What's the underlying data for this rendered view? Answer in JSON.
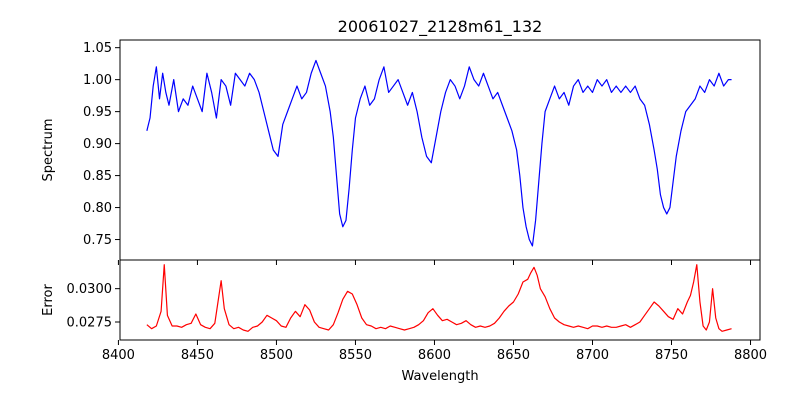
{
  "chart_data": [
    {
      "type": "line",
      "title": "20061027_2128m61_132",
      "xlabel": "",
      "ylabel": "Spectrum",
      "xlim": [
        8401,
        8806
      ],
      "ylim": [
        0.718,
        1.062
      ],
      "xticks": [
        8400,
        8450,
        8500,
        8550,
        8600,
        8650,
        8700,
        8750,
        8800
      ],
      "yticks": [
        0.75,
        0.8,
        0.85,
        0.9,
        0.95,
        1.0,
        1.05
      ],
      "ytick_labels": [
        "0.75",
        "0.80",
        "0.85",
        "0.90",
        "0.95",
        "1.00",
        "1.05"
      ],
      "grid": false,
      "color": "#0000ff",
      "x_range": [
        8418,
        8788
      ],
      "points": [
        [
          8418,
          0.92
        ],
        [
          8420,
          0.94
        ],
        [
          8422,
          0.99
        ],
        [
          8424,
          1.02
        ],
        [
          8426,
          0.97
        ],
        [
          8428,
          1.01
        ],
        [
          8430,
          0.98
        ],
        [
          8432,
          0.96
        ],
        [
          8435,
          1.0
        ],
        [
          8438,
          0.95
        ],
        [
          8441,
          0.97
        ],
        [
          8444,
          0.96
        ],
        [
          8447,
          0.99
        ],
        [
          8450,
          0.97
        ],
        [
          8453,
          0.95
        ],
        [
          8456,
          1.01
        ],
        [
          8459,
          0.98
        ],
        [
          8462,
          0.94
        ],
        [
          8465,
          1.0
        ],
        [
          8468,
          0.99
        ],
        [
          8471,
          0.96
        ],
        [
          8474,
          1.01
        ],
        [
          8477,
          1.0
        ],
        [
          8480,
          0.99
        ],
        [
          8483,
          1.01
        ],
        [
          8486,
          1.0
        ],
        [
          8489,
          0.98
        ],
        [
          8492,
          0.95
        ],
        [
          8495,
          0.92
        ],
        [
          8498,
          0.89
        ],
        [
          8501,
          0.88
        ],
        [
          8504,
          0.93
        ],
        [
          8507,
          0.95
        ],
        [
          8510,
          0.97
        ],
        [
          8513,
          0.99
        ],
        [
          8516,
          0.97
        ],
        [
          8519,
          0.98
        ],
        [
          8522,
          1.01
        ],
        [
          8525,
          1.03
        ],
        [
          8528,
          1.01
        ],
        [
          8531,
          0.99
        ],
        [
          8534,
          0.95
        ],
        [
          8536,
          0.91
        ],
        [
          8538,
          0.85
        ],
        [
          8540,
          0.79
        ],
        [
          8542,
          0.77
        ],
        [
          8544,
          0.78
        ],
        [
          8546,
          0.83
        ],
        [
          8548,
          0.89
        ],
        [
          8550,
          0.94
        ],
        [
          8553,
          0.97
        ],
        [
          8556,
          0.99
        ],
        [
          8559,
          0.96
        ],
        [
          8562,
          0.97
        ],
        [
          8565,
          1.0
        ],
        [
          8568,
          1.02
        ],
        [
          8571,
          0.98
        ],
        [
          8574,
          0.99
        ],
        [
          8577,
          1.0
        ],
        [
          8580,
          0.98
        ],
        [
          8583,
          0.96
        ],
        [
          8586,
          0.98
        ],
        [
          8589,
          0.95
        ],
        [
          8592,
          0.91
        ],
        [
          8595,
          0.88
        ],
        [
          8598,
          0.87
        ],
        [
          8601,
          0.91
        ],
        [
          8604,
          0.95
        ],
        [
          8607,
          0.98
        ],
        [
          8610,
          1.0
        ],
        [
          8613,
          0.99
        ],
        [
          8616,
          0.97
        ],
        [
          8619,
          0.99
        ],
        [
          8622,
          1.02
        ],
        [
          8625,
          1.0
        ],
        [
          8628,
          0.99
        ],
        [
          8631,
          1.01
        ],
        [
          8634,
          0.99
        ],
        [
          8637,
          0.97
        ],
        [
          8640,
          0.98
        ],
        [
          8643,
          0.96
        ],
        [
          8646,
          0.94
        ],
        [
          8649,
          0.92
        ],
        [
          8652,
          0.89
        ],
        [
          8654,
          0.85
        ],
        [
          8656,
          0.8
        ],
        [
          8658,
          0.77
        ],
        [
          8660,
          0.75
        ],
        [
          8662,
          0.74
        ],
        [
          8664,
          0.78
        ],
        [
          8666,
          0.84
        ],
        [
          8668,
          0.9
        ],
        [
          8670,
          0.95
        ],
        [
          8673,
          0.97
        ],
        [
          8676,
          0.99
        ],
        [
          8679,
          0.97
        ],
        [
          8682,
          0.98
        ],
        [
          8685,
          0.96
        ],
        [
          8688,
          0.99
        ],
        [
          8691,
          1.0
        ],
        [
          8694,
          0.98
        ],
        [
          8697,
          0.99
        ],
        [
          8700,
          0.98
        ],
        [
          8703,
          1.0
        ],
        [
          8706,
          0.99
        ],
        [
          8709,
          1.0
        ],
        [
          8712,
          0.98
        ],
        [
          8715,
          0.99
        ],
        [
          8718,
          0.98
        ],
        [
          8721,
          0.99
        ],
        [
          8724,
          0.98
        ],
        [
          8727,
          0.99
        ],
        [
          8730,
          0.97
        ],
        [
          8733,
          0.96
        ],
        [
          8736,
          0.93
        ],
        [
          8739,
          0.89
        ],
        [
          8741,
          0.86
        ],
        [
          8743,
          0.82
        ],
        [
          8745,
          0.8
        ],
        [
          8747,
          0.79
        ],
        [
          8749,
          0.8
        ],
        [
          8751,
          0.84
        ],
        [
          8753,
          0.88
        ],
        [
          8756,
          0.92
        ],
        [
          8759,
          0.95
        ],
        [
          8762,
          0.96
        ],
        [
          8765,
          0.97
        ],
        [
          8768,
          0.99
        ],
        [
          8771,
          0.98
        ],
        [
          8774,
          1.0
        ],
        [
          8777,
          0.99
        ],
        [
          8780,
          1.01
        ],
        [
          8783,
          0.99
        ],
        [
          8786,
          1.0
        ],
        [
          8788,
          1.0
        ]
      ]
    },
    {
      "type": "line",
      "title": "",
      "xlabel": "Wavelength",
      "ylabel": "Error",
      "xlim": [
        8401,
        8806
      ],
      "ylim": [
        0.02615,
        0.03215
      ],
      "xticks": [
        8400,
        8450,
        8500,
        8550,
        8600,
        8650,
        8700,
        8750,
        8800
      ],
      "xtick_labels": [
        "8400",
        "8450",
        "8500",
        "8550",
        "8600",
        "8650",
        "8700",
        "8750",
        "8800"
      ],
      "yticks": [
        0.0275,
        0.03
      ],
      "ytick_labels": [
        "0.0275",
        "0.0300"
      ],
      "grid": false,
      "color": "#ff0000",
      "x_range": [
        8418,
        8788
      ],
      "points": [
        [
          8418,
          0.0273
        ],
        [
          8421,
          0.027
        ],
        [
          8424,
          0.0272
        ],
        [
          8427,
          0.0283
        ],
        [
          8429,
          0.0318
        ],
        [
          8431,
          0.028
        ],
        [
          8434,
          0.0272
        ],
        [
          8437,
          0.0272
        ],
        [
          8440,
          0.0271
        ],
        [
          8443,
          0.0273
        ],
        [
          8446,
          0.0274
        ],
        [
          8449,
          0.0281
        ],
        [
          8452,
          0.0273
        ],
        [
          8455,
          0.0271
        ],
        [
          8458,
          0.027
        ],
        [
          8461,
          0.0274
        ],
        [
          8463,
          0.029
        ],
        [
          8465,
          0.0306
        ],
        [
          8467,
          0.0285
        ],
        [
          8470,
          0.0273
        ],
        [
          8473,
          0.027
        ],
        [
          8476,
          0.0271
        ],
        [
          8479,
          0.0269
        ],
        [
          8482,
          0.0268
        ],
        [
          8485,
          0.0271
        ],
        [
          8488,
          0.0272
        ],
        [
          8491,
          0.0275
        ],
        [
          8494,
          0.028
        ],
        [
          8497,
          0.0278
        ],
        [
          8500,
          0.0276
        ],
        [
          8503,
          0.0272
        ],
        [
          8506,
          0.0271
        ],
        [
          8509,
          0.0278
        ],
        [
          8512,
          0.0283
        ],
        [
          8515,
          0.0279
        ],
        [
          8518,
          0.0288
        ],
        [
          8521,
          0.0284
        ],
        [
          8524,
          0.0275
        ],
        [
          8527,
          0.0271
        ],
        [
          8530,
          0.027
        ],
        [
          8533,
          0.0269
        ],
        [
          8536,
          0.0273
        ],
        [
          8539,
          0.0282
        ],
        [
          8542,
          0.0292
        ],
        [
          8545,
          0.0298
        ],
        [
          8548,
          0.0296
        ],
        [
          8551,
          0.0288
        ],
        [
          8554,
          0.0278
        ],
        [
          8557,
          0.0273
        ],
        [
          8560,
          0.0272
        ],
        [
          8563,
          0.027
        ],
        [
          8566,
          0.0271
        ],
        [
          8569,
          0.027
        ],
        [
          8572,
          0.0272
        ],
        [
          8575,
          0.0271
        ],
        [
          8578,
          0.027
        ],
        [
          8581,
          0.0269
        ],
        [
          8584,
          0.027
        ],
        [
          8587,
          0.0271
        ],
        [
          8590,
          0.0273
        ],
        [
          8593,
          0.0276
        ],
        [
          8596,
          0.0282
        ],
        [
          8599,
          0.0285
        ],
        [
          8602,
          0.028
        ],
        [
          8605,
          0.0276
        ],
        [
          8608,
          0.0277
        ],
        [
          8611,
          0.0275
        ],
        [
          8614,
          0.0273
        ],
        [
          8617,
          0.0274
        ],
        [
          8620,
          0.0276
        ],
        [
          8623,
          0.0273
        ],
        [
          8626,
          0.0271
        ],
        [
          8629,
          0.0272
        ],
        [
          8632,
          0.0271
        ],
        [
          8635,
          0.0272
        ],
        [
          8638,
          0.0274
        ],
        [
          8641,
          0.0278
        ],
        [
          8644,
          0.0283
        ],
        [
          8647,
          0.0287
        ],
        [
          8650,
          0.029
        ],
        [
          8653,
          0.0296
        ],
        [
          8656,
          0.0305
        ],
        [
          8659,
          0.0307
        ],
        [
          8661,
          0.0312
        ],
        [
          8663,
          0.0316
        ],
        [
          8665,
          0.031
        ],
        [
          8667,
          0.03
        ],
        [
          8670,
          0.0294
        ],
        [
          8673,
          0.0285
        ],
        [
          8676,
          0.0278
        ],
        [
          8679,
          0.0275
        ],
        [
          8682,
          0.0273
        ],
        [
          8685,
          0.0272
        ],
        [
          8688,
          0.0271
        ],
        [
          8691,
          0.0272
        ],
        [
          8694,
          0.0271
        ],
        [
          8697,
          0.027
        ],
        [
          8700,
          0.0272
        ],
        [
          8703,
          0.0272
        ],
        [
          8706,
          0.0271
        ],
        [
          8709,
          0.0272
        ],
        [
          8712,
          0.0271
        ],
        [
          8715,
          0.0271
        ],
        [
          8718,
          0.0272
        ],
        [
          8721,
          0.0273
        ],
        [
          8724,
          0.0271
        ],
        [
          8727,
          0.0273
        ],
        [
          8730,
          0.0275
        ],
        [
          8733,
          0.028
        ],
        [
          8736,
          0.0285
        ],
        [
          8739,
          0.029
        ],
        [
          8742,
          0.0287
        ],
        [
          8745,
          0.0283
        ],
        [
          8748,
          0.0279
        ],
        [
          8751,
          0.0277
        ],
        [
          8754,
          0.0285
        ],
        [
          8757,
          0.0281
        ],
        [
          8760,
          0.029
        ],
        [
          8762,
          0.0295
        ],
        [
          8764,
          0.0305
        ],
        [
          8766,
          0.0318
        ],
        [
          8768,
          0.029
        ],
        [
          8770,
          0.0272
        ],
        [
          8772,
          0.0269
        ],
        [
          8774,
          0.0275
        ],
        [
          8776,
          0.03
        ],
        [
          8778,
          0.0278
        ],
        [
          8780,
          0.027
        ],
        [
          8782,
          0.0268
        ],
        [
          8785,
          0.0269
        ],
        [
          8788,
          0.027
        ]
      ]
    }
  ]
}
